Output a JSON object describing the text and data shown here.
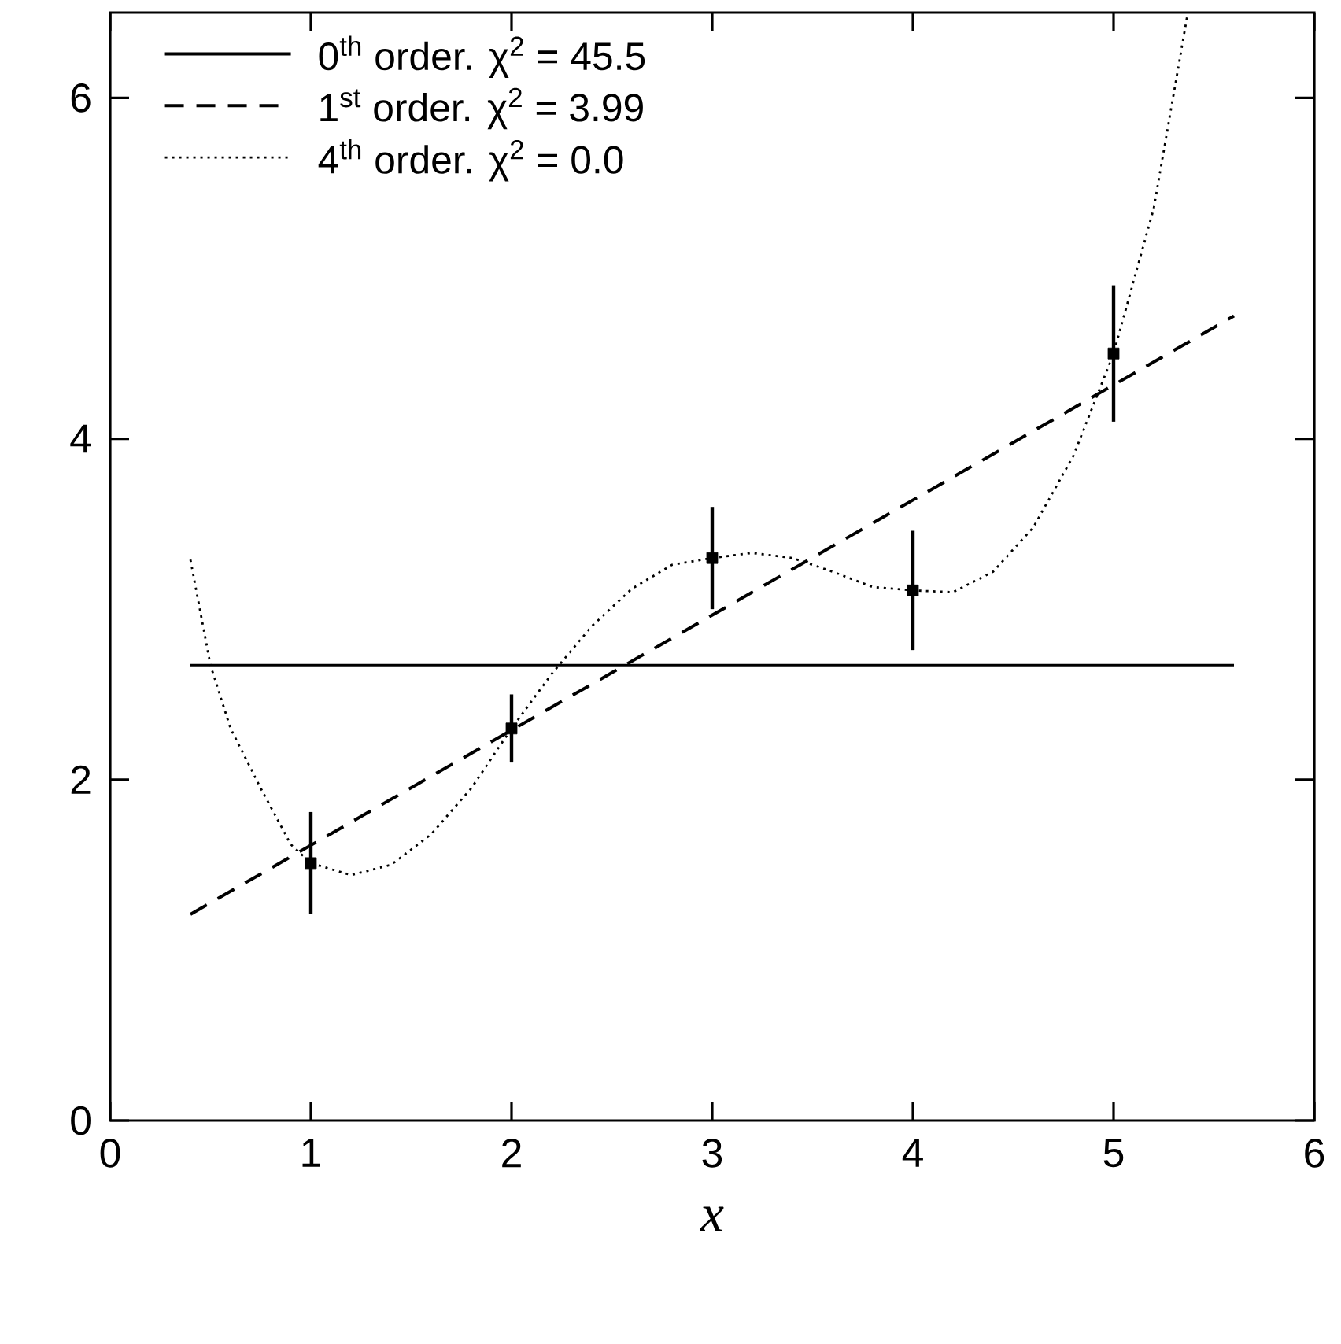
{
  "chart_data": {
    "type": "line",
    "xlabel": "x",
    "xlim": [
      0,
      6
    ],
    "ylim": [
      0,
      6.5
    ],
    "xticks": [
      0,
      1,
      2,
      3,
      4,
      5,
      6
    ],
    "yticks": [
      0,
      2,
      4,
      6
    ],
    "legend": "top left",
    "grid": false,
    "series": [
      {
        "name": "0$^{th}$ order.  χ$^{2}$ = 45.5",
        "line_style": "solid",
        "color": "#000000",
        "x": [
          0.4,
          5.6
        ],
        "values": [
          2.67,
          2.67
        ]
      },
      {
        "name": "1$^{st}$ order.  χ$^{2}$ = 3.99",
        "line_style": "dashed",
        "color": "#000000",
        "x": [
          0.4,
          5.6
        ],
        "values": [
          1.21,
          4.72
        ]
      },
      {
        "name": "4$^{th}$ order.  χ$^{2}$ = 0.0",
        "line_style": "dotted",
        "color": "#000000",
        "x": [
          0.4,
          0.5,
          0.6,
          0.75,
          0.9,
          1.0,
          1.2,
          1.4,
          1.6,
          1.8,
          2.0,
          2.2,
          2.4,
          2.6,
          2.8,
          3.0,
          3.2,
          3.4,
          3.6,
          3.8,
          4.0,
          4.2,
          4.4,
          4.6,
          4.8,
          5.0,
          5.2,
          5.37
        ],
        "values": [
          3.29,
          2.67,
          2.3,
          1.95,
          1.62,
          1.51,
          1.44,
          1.5,
          1.68,
          1.95,
          2.3,
          2.62,
          2.9,
          3.12,
          3.26,
          3.3,
          3.33,
          3.3,
          3.22,
          3.13,
          3.11,
          3.1,
          3.22,
          3.48,
          3.9,
          4.5,
          5.35,
          6.5
        ]
      },
      {
        "type": "scatter",
        "marker": "square",
        "color": "#000000",
        "x": [
          1,
          2,
          3,
          4,
          5
        ],
        "values": [
          1.51,
          2.3,
          3.3,
          3.11,
          4.5
        ],
        "errors": [
          0.3,
          0.2,
          0.3,
          0.35,
          0.4
        ]
      }
    ]
  }
}
